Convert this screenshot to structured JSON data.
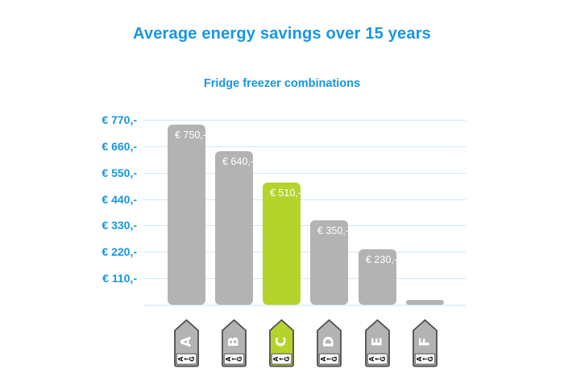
{
  "chart_data": {
    "type": "bar",
    "title": "Average energy savings over 15 years",
    "subtitle": "Fridge freezer combinations",
    "categories": [
      "A",
      "B",
      "C",
      "D",
      "E",
      "F"
    ],
    "values": [
      750,
      640,
      510,
      350,
      230,
      20
    ],
    "bar_labels": [
      "€ 750,-",
      "€ 640,-",
      "€ 510,-",
      "€ 350,-",
      "€ 230,-",
      ""
    ],
    "yticks": [
      "€ 770,-",
      "€ 660,-",
      "€ 550,-",
      "€ 440,-",
      "€ 330,-",
      "€ 220,-",
      "€ 110,-"
    ],
    "ylim": [
      0,
      770
    ],
    "grid": true,
    "legend": "none",
    "highlight_category": "C",
    "energy_scale": {
      "from": "A",
      "arrow": "←",
      "to": "G"
    },
    "colors": {
      "title": "#1796e0",
      "axis_label": "#1796e0",
      "grid": "#cfe9f9",
      "bar": "#b3b3b3",
      "highlight": "#b4d42c",
      "bar_label": "#ffffff",
      "icon_border": "#4d4d4d",
      "icon_strip_text": "#1a1a1a"
    }
  }
}
